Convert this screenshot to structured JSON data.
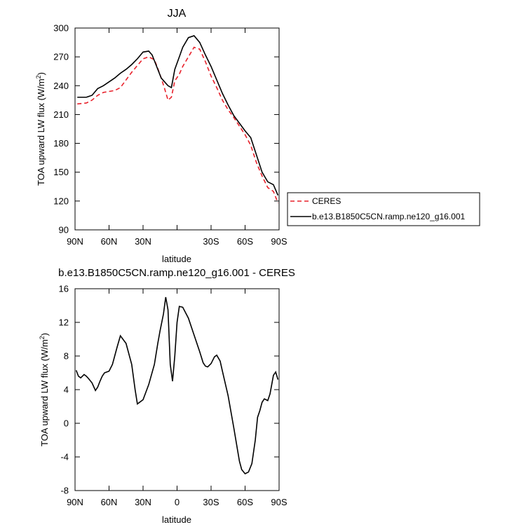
{
  "colors": {
    "model": "#000000",
    "ceres": "#e8202a",
    "axis": "#000000",
    "background": "#ffffff"
  },
  "chart_data": [
    {
      "type": "line",
      "title": "JJA",
      "xlabel": "latitude",
      "ylabel_main": "TOA upward LW flux (W/m",
      "ylabel_sup": "2",
      "ylabel_end": ")",
      "xlim": [
        90,
        -90
      ],
      "ylim": [
        90,
        300
      ],
      "xticks": [
        90,
        60,
        30,
        0,
        -30,
        -60,
        -90
      ],
      "xtick_labels": [
        "90N",
        "60N",
        "30N",
        "",
        "30S",
        "60S",
        "90S"
      ],
      "yticks": [
        90,
        120,
        150,
        180,
        210,
        240,
        270,
        300
      ],
      "ytick_labels": [
        "90",
        "120",
        "150",
        "180",
        "210",
        "240",
        "270",
        "300"
      ],
      "legend_position": "outside-right",
      "series": [
        {
          "name": "CERES",
          "style": "dashed",
          "color": "#e8202a",
          "x": [
            88,
            80,
            75,
            70,
            65,
            60,
            55,
            50,
            45,
            40,
            35,
            30,
            25,
            20,
            17,
            14,
            11,
            8,
            5,
            2,
            -2,
            -5,
            -10,
            -15,
            -20,
            -25,
            -30,
            -35,
            -40,
            -45,
            -50,
            -55,
            -60,
            -65,
            -70,
            -75,
            -80,
            -85,
            -89
          ],
          "values": [
            221,
            222,
            225,
            230,
            233,
            234,
            235,
            238,
            246,
            254,
            261,
            268,
            270,
            267,
            258,
            248,
            237,
            225,
            228,
            245,
            252,
            260,
            270,
            280,
            278,
            265,
            250,
            238,
            225,
            215,
            207,
            198,
            189,
            178,
            160,
            146,
            134,
            130,
            118
          ]
        },
        {
          "name": "b.e13.B1850C5CN.ramp.ne120_g16.001",
          "style": "solid",
          "color": "#000000",
          "x": [
            88,
            80,
            75,
            70,
            65,
            60,
            55,
            50,
            45,
            40,
            35,
            30,
            25,
            22,
            20,
            17,
            14,
            11,
            8,
            5,
            2,
            -2,
            -5,
            -10,
            -15,
            -20,
            -25,
            -30,
            -35,
            -40,
            -45,
            -50,
            -55,
            -60,
            -65,
            -70,
            -75,
            -80,
            -85,
            -89
          ],
          "values": [
            228,
            228,
            230,
            237,
            240,
            244,
            248,
            253,
            257,
            262,
            268,
            275,
            276,
            272,
            266,
            257,
            248,
            244,
            240,
            238,
            257,
            270,
            280,
            290,
            292,
            285,
            272,
            260,
            246,
            232,
            220,
            209,
            201,
            193,
            186,
            168,
            150,
            140,
            137,
            126
          ]
        }
      ]
    },
    {
      "type": "line",
      "title": "b.e13.B1850C5CN.ramp.ne120_g16.001 - CERES",
      "xlabel": "latitude",
      "ylabel_main": "TOA upward LW flux (W/m",
      "ylabel_sup": "2",
      "ylabel_end": ")",
      "xlim": [
        90,
        -90
      ],
      "ylim": [
        -8,
        16
      ],
      "xticks": [
        90,
        60,
        30,
        0,
        -30,
        -60,
        -90
      ],
      "xtick_labels": [
        "90N",
        "60N",
        "30N",
        "0",
        "30S",
        "60S",
        "90S"
      ],
      "yticks": [
        -8,
        -4,
        0,
        4,
        8,
        12,
        16
      ],
      "ytick_labels": [
        "-8",
        "-4",
        "0",
        "4",
        "8",
        "12",
        "16"
      ],
      "series": [
        {
          "name": "b.e13.B1850C5CN.ramp.ne120_g16.001 - CERES",
          "style": "solid",
          "color": "#000000",
          "x": [
            89,
            87,
            85,
            82,
            80,
            78,
            75,
            72,
            70,
            68,
            66,
            64,
            60,
            57,
            55,
            53,
            50,
            45,
            40,
            37,
            35,
            30,
            25,
            20,
            17,
            15,
            12,
            10,
            8,
            6,
            4,
            2,
            0,
            -2,
            -5,
            -10,
            -15,
            -20,
            -23,
            -25,
            -27,
            -30,
            -33,
            -35,
            -38,
            -40,
            -45,
            -50,
            -55,
            -57,
            -60,
            -63,
            -66,
            -69,
            -71,
            -73,
            -75,
            -77,
            -80,
            -82,
            -85,
            -87,
            -89
          ],
          "values": [
            6.3,
            5.6,
            5.4,
            5.8,
            5.6,
            5.3,
            4.8,
            3.9,
            4.3,
            5.0,
            5.6,
            6.0,
            6.2,
            7.0,
            8.0,
            9.0,
            10.4,
            9.5,
            7.0,
            4.0,
            2.3,
            2.8,
            4.6,
            7.0,
            9.5,
            11.0,
            13.0,
            15.0,
            13.5,
            7.0,
            5.0,
            8.0,
            12.0,
            13.9,
            13.8,
            12.5,
            10.5,
            8.5,
            7.2,
            6.8,
            6.7,
            7.1,
            7.9,
            8.1,
            7.4,
            6.2,
            3.3,
            -0.5,
            -4.5,
            -5.5,
            -6.0,
            -5.8,
            -4.8,
            -2.0,
            0.7,
            1.5,
            2.5,
            2.9,
            2.7,
            3.5,
            5.7,
            6.1,
            5.2
          ]
        }
      ]
    }
  ]
}
